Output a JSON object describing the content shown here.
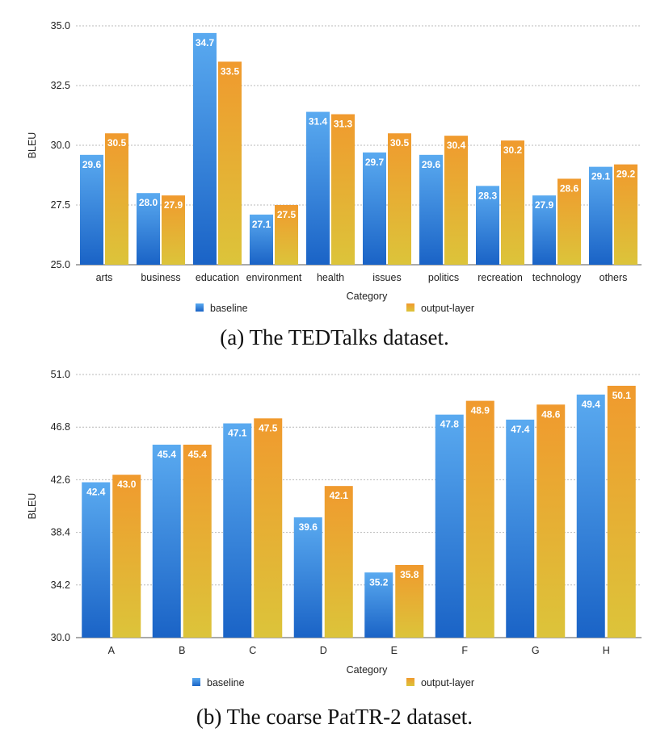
{
  "figures": [
    {
      "caption": "(a) The TEDTalks dataset."
    },
    {
      "caption": "(b) The coarse PatTR-2 dataset."
    }
  ],
  "chart_data": [
    {
      "type": "bar",
      "xlabel": "Category",
      "ylabel": "BLEU",
      "ylim": [
        25.0,
        35.0
      ],
      "yticks": [
        "25.0",
        "27.5",
        "30.0",
        "32.5",
        "35.0"
      ],
      "categories": [
        "arts",
        "business",
        "education",
        "environment",
        "health",
        "issues",
        "politics",
        "recreation",
        "technology",
        "others"
      ],
      "series": [
        {
          "name": "baseline",
          "values": [
            29.6,
            28.0,
            34.7,
            27.1,
            31.4,
            29.7,
            29.6,
            28.3,
            27.9,
            29.1
          ],
          "labels": [
            "29.6",
            "28.0",
            "34.7",
            "27.1",
            "31.4",
            "29.7",
            "29.6",
            "28.3",
            "27.9",
            "29.1"
          ]
        },
        {
          "name": "output-layer",
          "values": [
            30.5,
            27.9,
            33.5,
            27.5,
            31.3,
            30.5,
            30.4,
            30.2,
            28.6,
            29.2
          ],
          "labels": [
            "30.5",
            "27.9",
            "33.5",
            "27.5",
            "31.3",
            "30.5",
            "30.4",
            "30.2",
            "28.6",
            "29.2"
          ]
        }
      ],
      "grid": true,
      "legend": "bottom"
    },
    {
      "type": "bar",
      "xlabel": "Category",
      "ylabel": "BLEU",
      "ylim": [
        30.0,
        51.0
      ],
      "yticks": [
        "30.0",
        "34.2",
        "38.4",
        "42.6",
        "46.8",
        "51.0"
      ],
      "categories": [
        "A",
        "B",
        "C",
        "D",
        "E",
        "F",
        "G",
        "H"
      ],
      "series": [
        {
          "name": "baseline",
          "values": [
            42.4,
            45.4,
            47.1,
            39.6,
            35.2,
            47.8,
            47.4,
            49.4
          ],
          "labels": [
            "42.4",
            "45.4",
            "47.1",
            "39.6",
            "35.2",
            "47.8",
            "47.4",
            "49.4"
          ]
        },
        {
          "name": "output-layer",
          "values": [
            43.0,
            45.4,
            47.5,
            42.1,
            35.8,
            48.9,
            48.6,
            50.1
          ],
          "labels": [
            "43.0",
            "45.4",
            "47.5",
            "42.1",
            "35.8",
            "48.9",
            "48.6",
            "50.1"
          ]
        }
      ],
      "grid": true,
      "legend": "bottom"
    }
  ]
}
